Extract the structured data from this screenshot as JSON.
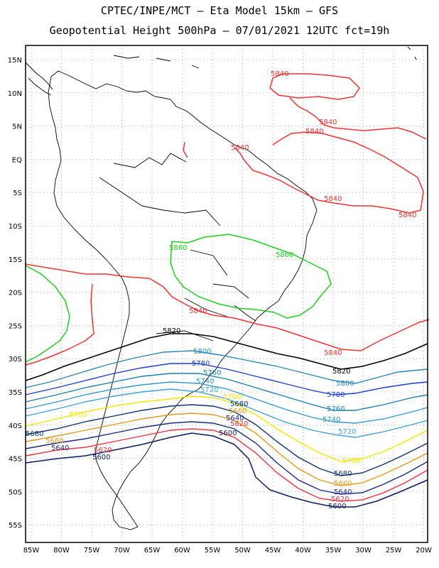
{
  "header": {
    "line1": "CPTEC/INPE/MCT –  Eta Model 15km – GFS",
    "line2": "Geopotential Height 500hPa – 07/01/2021 12UTC fct=19h"
  },
  "axes": {
    "lat_labels": [
      "15N",
      "10N",
      "5N",
      "EQ",
      "5S",
      "10S",
      "15S",
      "20S",
      "25S",
      "30S",
      "35S",
      "40S",
      "45S",
      "50S",
      "55S"
    ],
    "lon_labels": [
      "85W",
      "80W",
      "75W",
      "70W",
      "65W",
      "60W",
      "55W",
      "50W",
      "45W",
      "40W",
      "35W",
      "30W",
      "25W",
      "20W"
    ]
  },
  "colors": {
    "c5840": "#ee3333",
    "c5860": "#22cc22",
    "c5820": "#000000",
    "c5800": "#2e86b8",
    "c5780": "#1c3fd0",
    "c5760": "#1a7fb0",
    "c5740": "#3399cc",
    "c5720": "#3fa0d8",
    "c5700": "#f5e600",
    "c5680": "#103070",
    "c5660": "#e09a20",
    "c5640": "#1a2a80",
    "c5620": "#ee3344",
    "c5600": "#0a1a60",
    "coast": "#000000",
    "grid": "#999999"
  },
  "contour_labels": {
    "l5840a": "5840",
    "l5840b": "5840",
    "l5840c": "5840",
    "l5840d": "5840",
    "l5840e": "5840",
    "l5840f": "5840",
    "l5840g": "5840",
    "l5840h": "5840",
    "l5860a": "5860",
    "l5860b": "5860",
    "l5820a": "5820",
    "l5820b": "5820",
    "l5800a": "5800",
    "l5800b": "5800",
    "l5780a": "5780",
    "l5780b": "5780",
    "l5760a": "5760",
    "l5760b": "5760",
    "l5740a": "5740",
    "l5740b": "5740",
    "l5720a": "5720",
    "l5720b": "5720",
    "l5700a": "5700",
    "l5700b": "5700",
    "l5700c": "5700",
    "l5680a": "5680",
    "l5680b": "5680",
    "l5680c": "5680",
    "l5660a": "5660",
    "l5660b": "5660",
    "l5660c": "5660",
    "l5640a": "5640",
    "l5640b": "5640",
    "l5640c": "5640",
    "l5620a": "5620",
    "l5620b": "5620",
    "l5620c": "5620",
    "l5600a": "5600",
    "l5600b": "5600",
    "l5600c": "5600"
  }
}
